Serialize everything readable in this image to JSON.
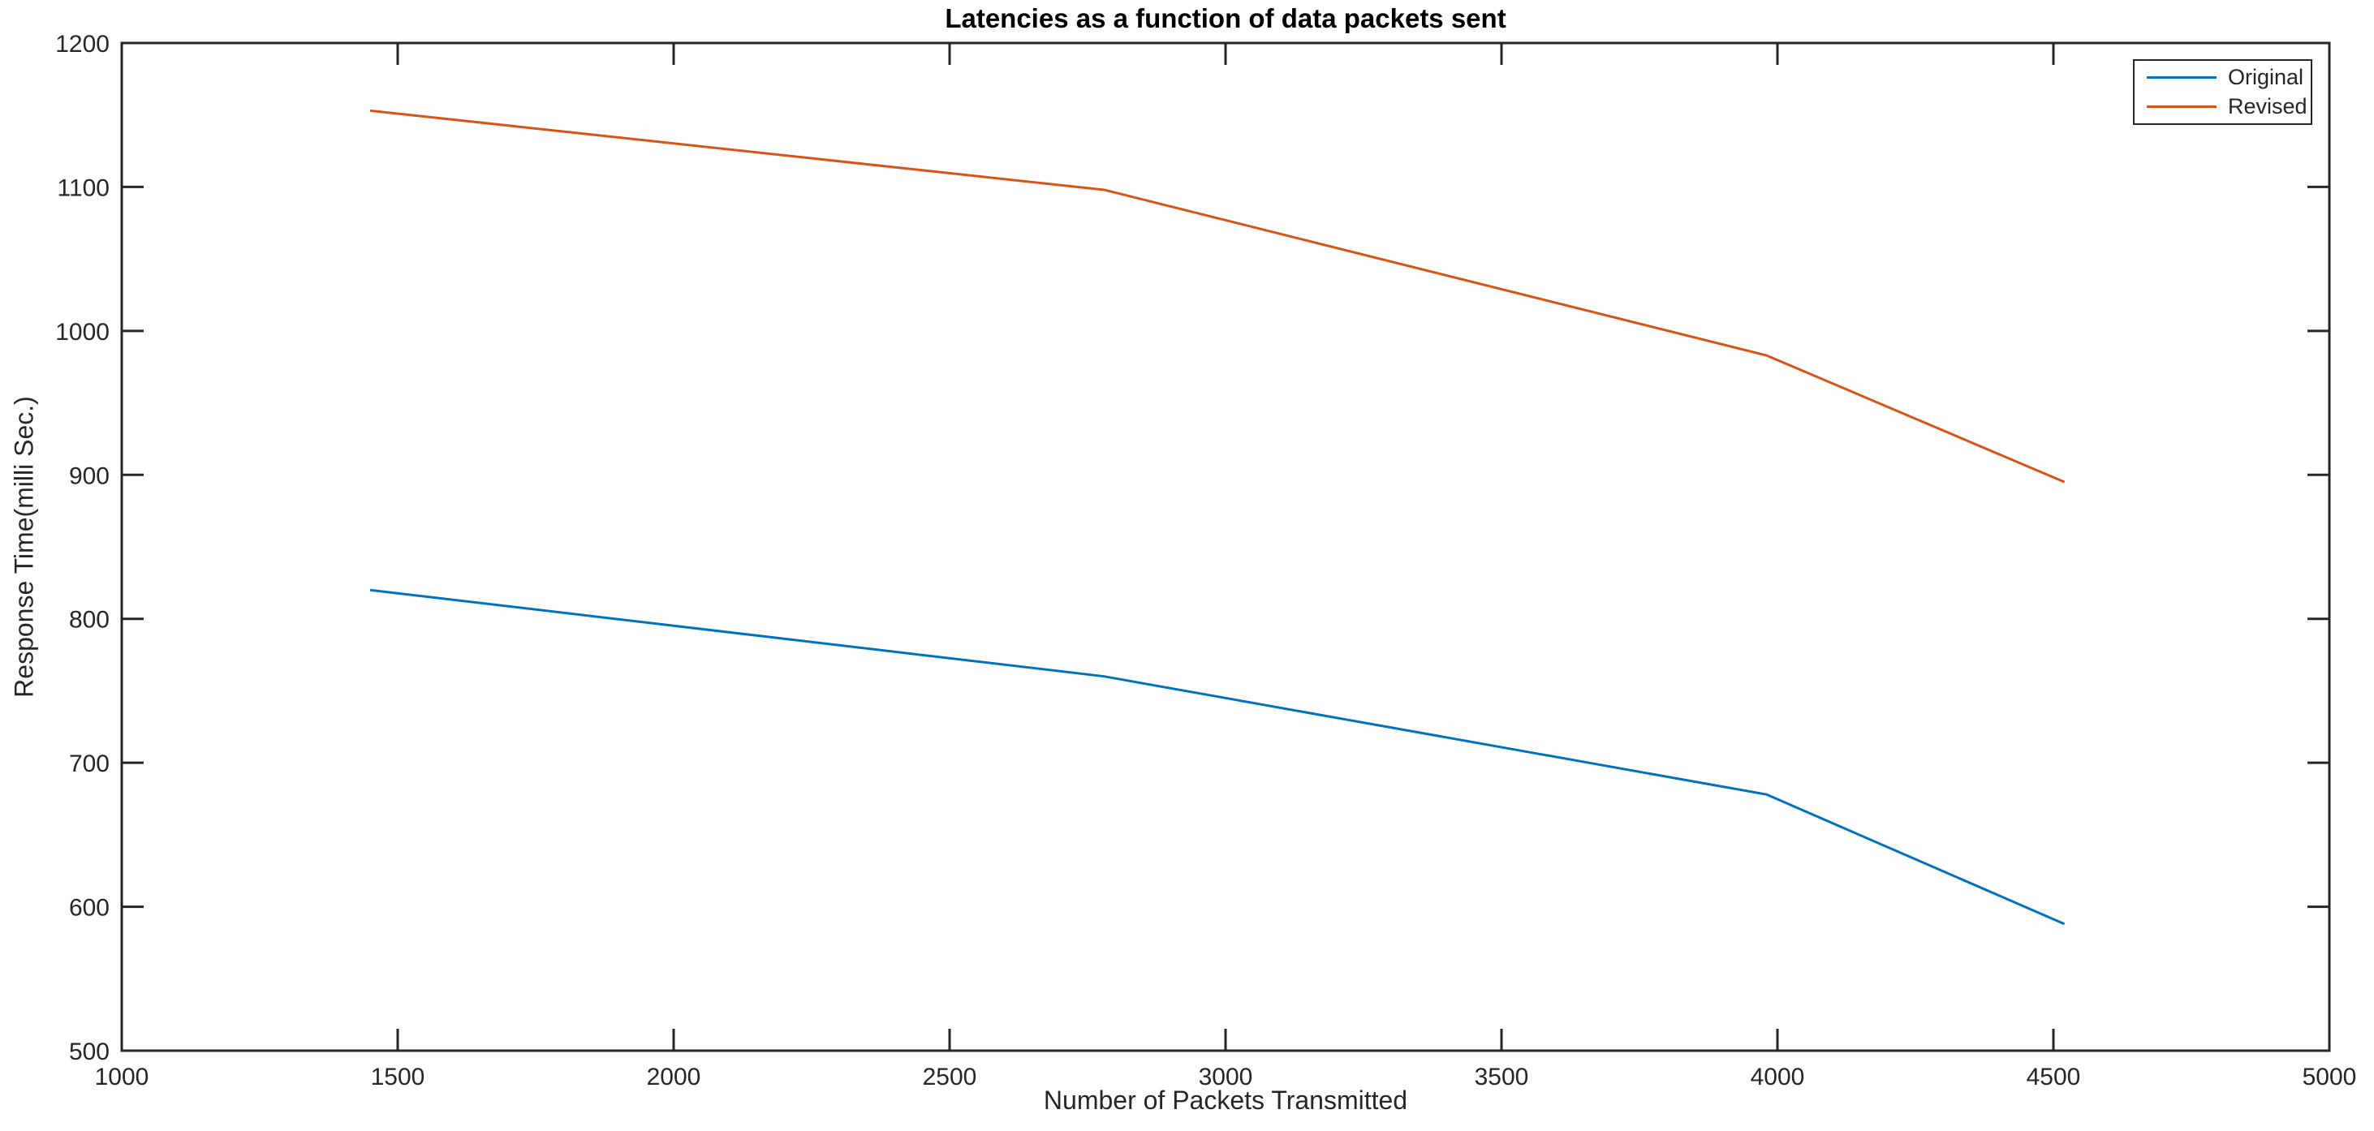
{
  "figure": {
    "title": "Latencies as a function of data packets sent"
  },
  "chart_data": {
    "type": "line",
    "title": "Latencies as a function of data packets sent",
    "xlabel": "Number of Packets Transmitted",
    "ylabel": "Response Time(milli Sec.)",
    "xlim": [
      1000,
      5000
    ],
    "ylim": [
      500,
      1200
    ],
    "xticks": [
      1000,
      1500,
      2000,
      2500,
      3000,
      3500,
      4000,
      4500,
      5000
    ],
    "yticks": [
      500,
      600,
      700,
      800,
      900,
      1000,
      1100,
      1200
    ],
    "grid": false,
    "legend_position": "top-right",
    "axis_color": "#262626",
    "background_color": "#ffffff",
    "x": [
      1450,
      2780,
      3980,
      4520
    ],
    "series": [
      {
        "name": "Original",
        "color": "#0072BD",
        "values": [
          820,
          760,
          678,
          588
        ]
      },
      {
        "name": "Revised",
        "color": "#D95319",
        "values": [
          1153,
          1098,
          983,
          895
        ]
      }
    ]
  },
  "legend": {
    "items": [
      {
        "label": "Original",
        "color": "#0072BD"
      },
      {
        "label": "Revised",
        "color": "#D95319"
      }
    ]
  }
}
